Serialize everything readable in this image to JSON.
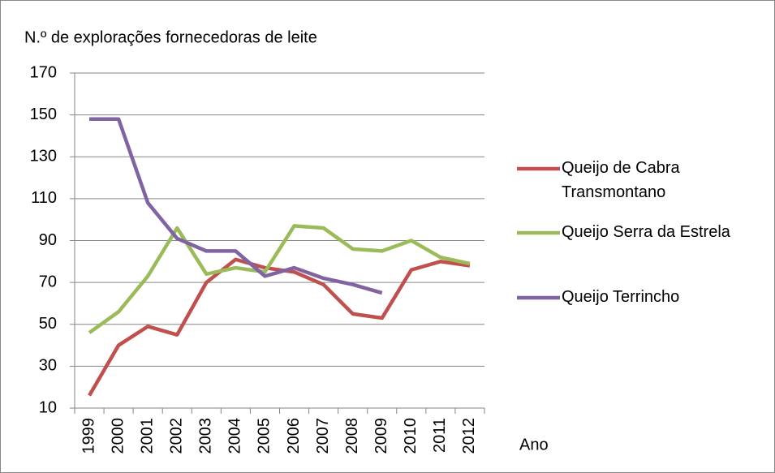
{
  "chart_data": {
    "type": "line",
    "title": "N.º de explorações fornecedoras de leite",
    "x_label": "Ano",
    "categories": [
      "1999",
      "2000",
      "2001",
      "2002",
      "2003",
      "2004",
      "2005",
      "2006",
      "2007",
      "2008",
      "2009",
      "2010",
      "2011",
      "2012"
    ],
    "series": [
      {
        "name": "Queijo de Cabra Transmontano",
        "color": "#c0504d",
        "values": [
          16,
          40,
          49,
          45,
          70,
          81,
          77,
          75,
          69,
          55,
          53,
          76,
          80,
          78
        ]
      },
      {
        "name": "Queijo Serra da Estrela",
        "color": "#9bbb59",
        "values": [
          46,
          56,
          73,
          96,
          74,
          77,
          75,
          97,
          96,
          86,
          85,
          90,
          82,
          79
        ]
      },
      {
        "name": "Queijo Terrincho",
        "color": "#8064a2",
        "values": [
          148,
          148,
          108,
          91,
          85,
          85,
          73,
          77,
          72,
          69,
          65,
          null,
          null,
          null
        ]
      }
    ],
    "ylim": [
      10,
      170
    ],
    "yticks": [
      10,
      30,
      50,
      70,
      90,
      110,
      130,
      150,
      170
    ],
    "grid": true,
    "legend": "right"
  }
}
